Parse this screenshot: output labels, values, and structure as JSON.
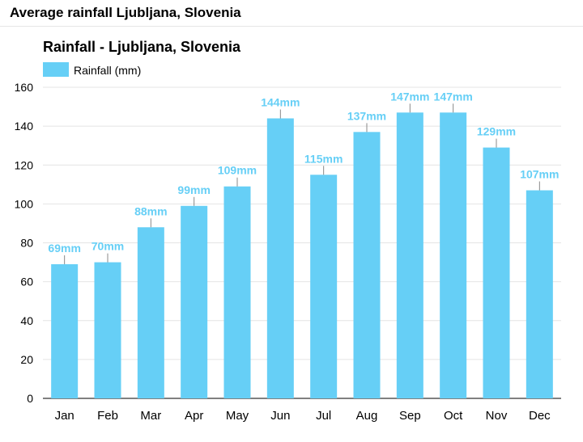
{
  "header": {
    "title": "Average rainfall Ljubljana, Slovenia"
  },
  "chart_data": {
    "type": "bar",
    "title": "Rainfall - Ljubljana, Slovenia",
    "xlabel": "",
    "ylabel": "",
    "ylim": [
      0,
      160
    ],
    "yticks": [
      0,
      20,
      40,
      60,
      80,
      100,
      120,
      140,
      160
    ],
    "grid": true,
    "legend_position": "top-left",
    "categories": [
      "Jan",
      "Feb",
      "Mar",
      "Apr",
      "May",
      "Jun",
      "Jul",
      "Aug",
      "Sep",
      "Oct",
      "Nov",
      "Dec"
    ],
    "series": [
      {
        "name": "Rainfall (mm)",
        "color": "#66cff6",
        "values": [
          69,
          70,
          88,
          99,
          109,
          144,
          115,
          137,
          147,
          147,
          129,
          107
        ],
        "data_labels": [
          "69mm",
          "70mm",
          "88mm",
          "99mm",
          "109mm",
          "144mm",
          "115mm",
          "137mm",
          "147mm",
          "147mm",
          "129mm",
          "107mm"
        ]
      }
    ]
  }
}
